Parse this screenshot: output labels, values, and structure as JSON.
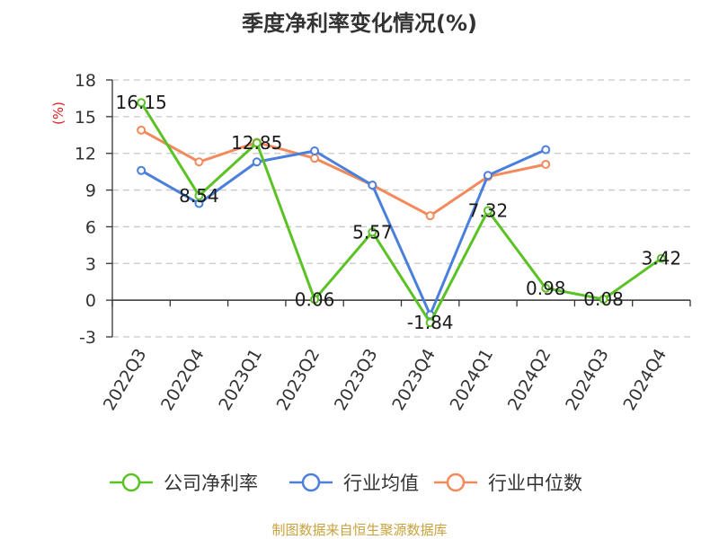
{
  "chart_data": {
    "type": "line",
    "title": "季度净利率变化情况(%)",
    "ylabel": "(%)",
    "categories": [
      "2022Q3",
      "2022Q4",
      "2023Q1",
      "2023Q2",
      "2023Q3",
      "2023Q4",
      "2024Q1",
      "2024Q2",
      "2024Q3",
      "2024Q4"
    ],
    "yticks": [
      "18",
      "15",
      "12",
      "9",
      "6",
      "3",
      "0",
      "-3"
    ],
    "ylim": [
      -3,
      18
    ],
    "grid": "horizontal dashed",
    "legend_position": "bottom",
    "series": [
      {
        "name": "公司净利率",
        "color": "#5bc225",
        "values": [
          16.15,
          8.54,
          12.85,
          0.06,
          5.57,
          -1.84,
          7.32,
          0.98,
          0.08,
          3.42
        ],
        "labels": [
          "16.15",
          "8.54",
          "12.85",
          "0.06",
          "5.57",
          "-1.84",
          "7.32",
          "0.98",
          "0.08",
          "3.42"
        ]
      },
      {
        "name": "行业均值",
        "color": "#4a7fdc",
        "values": [
          10.6,
          7.9,
          11.3,
          12.2,
          9.4,
          -1.2,
          10.2,
          12.3,
          null,
          null
        ]
      },
      {
        "name": "行业中位数",
        "color": "#f28a5c",
        "values": [
          13.9,
          11.3,
          12.9,
          11.6,
          9.4,
          6.9,
          10.1,
          11.1,
          null,
          null
        ]
      }
    ]
  },
  "source": "制图数据来自恒生聚源数据库"
}
